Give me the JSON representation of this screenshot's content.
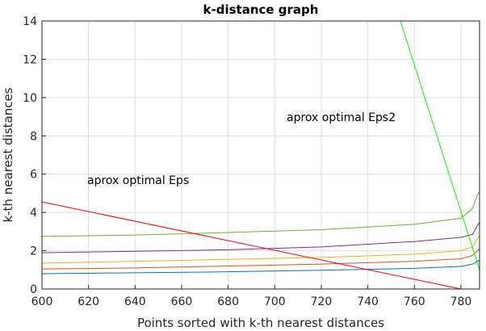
{
  "chart_data": {
    "type": "line",
    "title": "k-distance graph",
    "xlabel": "Points sorted with k-th nearest distances",
    "ylabel": "k-th nearest distances",
    "xlim": [
      600,
      788
    ],
    "ylim": [
      0,
      14
    ],
    "xticks": [
      600,
      620,
      640,
      660,
      680,
      700,
      720,
      740,
      760,
      780
    ],
    "yticks": [
      0,
      2,
      4,
      6,
      8,
      10,
      12,
      14
    ],
    "grid": true,
    "legend": "none",
    "annotations": [
      {
        "text": "aprox optimal Eps",
        "x": 620,
        "y": 5.5
      },
      {
        "text": "aprox optimal Eps2",
        "x": 704,
        "y": 8.8
      }
    ],
    "series": [
      {
        "color": "#0072bd",
        "x": [
          600,
          640,
          680,
          720,
          760,
          780,
          785,
          788
        ],
        "y": [
          0.8,
          0.85,
          0.9,
          0.98,
          1.08,
          1.18,
          1.3,
          1.5
        ]
      },
      {
        "color": "#d95319",
        "x": [
          600,
          640,
          680,
          720,
          760,
          780,
          785,
          788
        ],
        "y": [
          1.05,
          1.1,
          1.2,
          1.3,
          1.45,
          1.58,
          1.75,
          2.1
        ]
      },
      {
        "color": "#edb120",
        "x": [
          600,
          640,
          680,
          720,
          760,
          780,
          785,
          788
        ],
        "y": [
          1.35,
          1.45,
          1.55,
          1.65,
          1.82,
          2.0,
          2.2,
          2.8
        ]
      },
      {
        "color": "#7e2f8e",
        "x": [
          600,
          640,
          680,
          720,
          760,
          780,
          785,
          787,
          788
        ],
        "y": [
          1.9,
          1.97,
          2.05,
          2.2,
          2.48,
          2.7,
          2.85,
          3.3,
          3.5
        ]
      },
      {
        "color": "#77ac30",
        "x": [
          600,
          640,
          680,
          720,
          760,
          780,
          785,
          787,
          788
        ],
        "y": [
          2.75,
          2.82,
          2.95,
          3.1,
          3.38,
          3.7,
          4.2,
          4.9,
          5.1
        ]
      },
      {
        "color": "#ff0000",
        "x": [
          600,
          780
        ],
        "y": [
          4.55,
          0
        ]
      },
      {
        "color": "#00ff00",
        "x": [
          754,
          788
        ],
        "y": [
          14,
          1.0
        ]
      }
    ]
  }
}
